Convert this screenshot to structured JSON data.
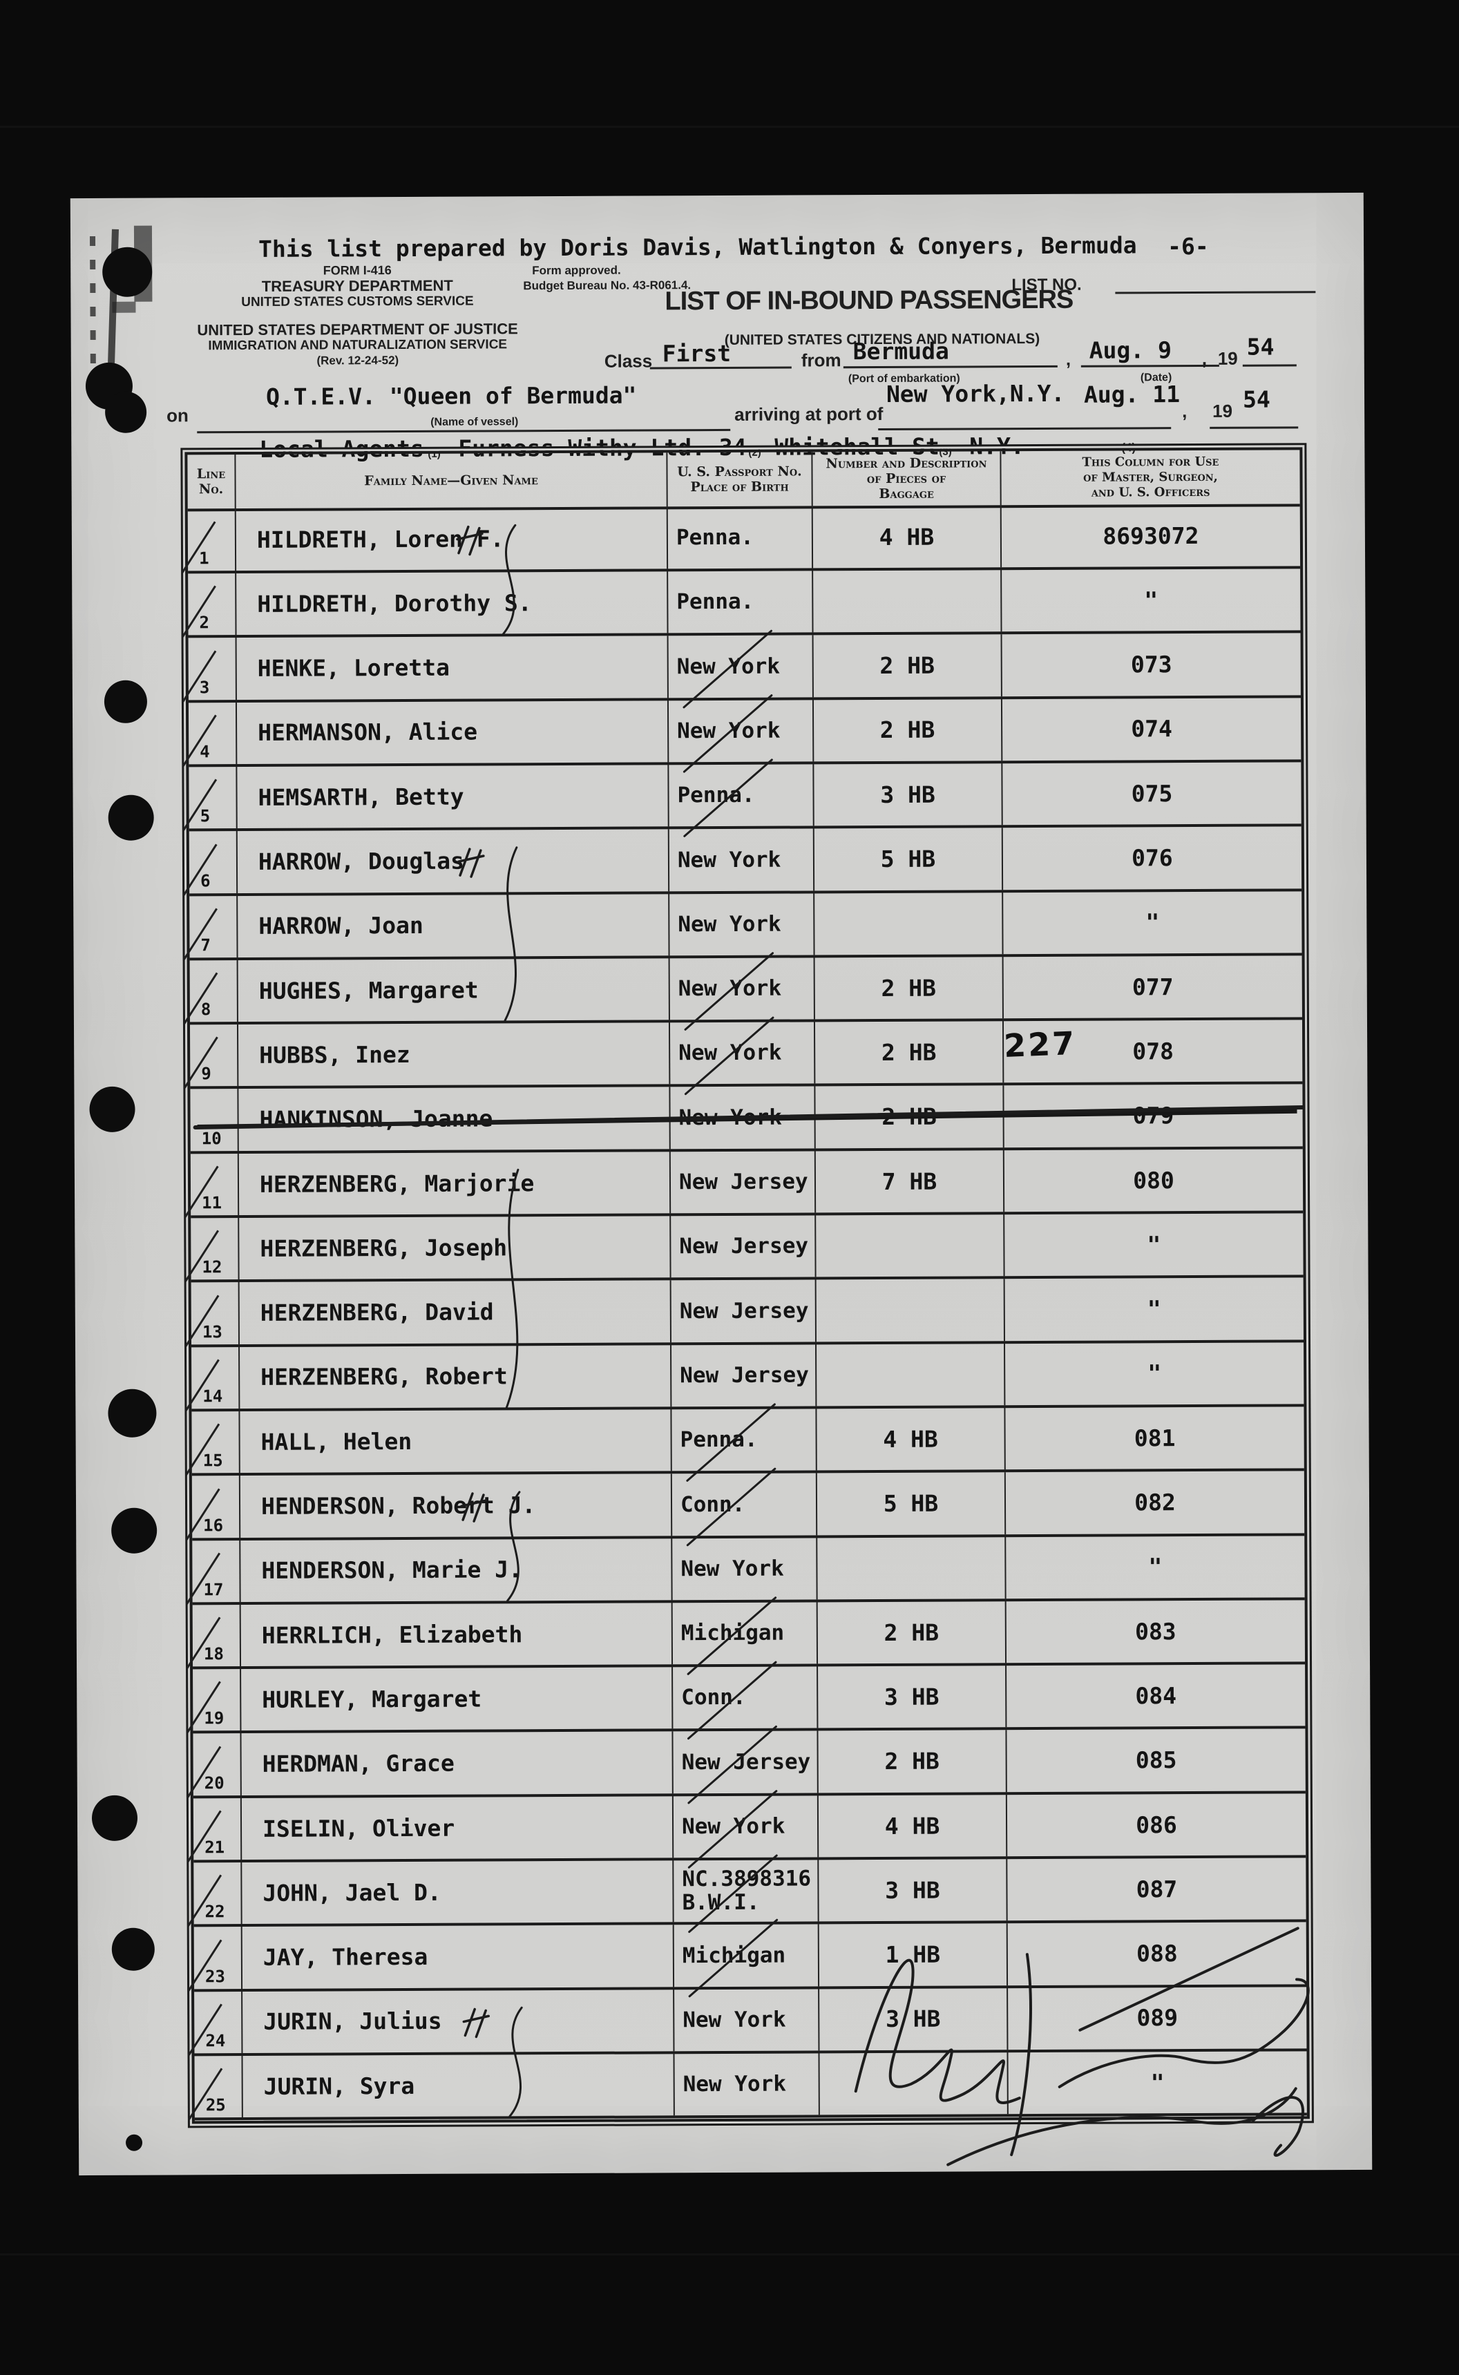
{
  "doc": {
    "prepared_line": "This list prepared by Doris Davis, Watlington & Conyers, Bermuda",
    "page_number": "-6-",
    "form_approved": "Form approved.",
    "budget_bureau": "Budget Bureau No. 43-R061.4.",
    "form_number": "FORM I-416",
    "treasury": "TREASURY DEPARTMENT",
    "customs": "UNITED STATES CUSTOMS SERVICE",
    "justice": "UNITED STATES DEPARTMENT OF JUSTICE",
    "ins": "IMMIGRATION AND NATURALIZATION SERVICE",
    "revision": "(Rev. 12-24-52)",
    "list_no_label": "LIST NO.",
    "title": "LIST OF IN-BOUND PASSENGERS",
    "subtitle": "(UNITED STATES CITIZENS AND NATIONALS)",
    "comma": ","
  },
  "voyage": {
    "class_label": "Class",
    "class_value": "First",
    "from_label": "from",
    "from_value": "Bermuda",
    "port_caption": "(Port of embarkation)",
    "date_caption": "(Date)",
    "embark_date": "Aug. 9",
    "year_printed": "19",
    "embark_year": "54",
    "on_label": "on",
    "vessel_name": "Q.T.E.V. \"Queen of Bermuda\"",
    "vessel_caption": "(Name of vessel)",
    "arriving_label": "arriving at port of",
    "arrival_port": "New York,N.Y.",
    "arrival_date": "Aug. 11",
    "arrival_year": "54",
    "agents_label": "Local Agents",
    "footnote1": "(1)",
    "agents_firm": "Furness Withy Ltd. 34",
    "footnote2": "(2)",
    "agents_street": "Whitehall St",
    "footnote3": "(3)",
    "agents_city": "N.Y.",
    "footnote4": "(4)"
  },
  "table": {
    "headers": {
      "line": "Line\nNo.",
      "name": "Family Name—Given Name",
      "passport": "U. S. Passport No.\nPlace of Birth",
      "baggage": "Number and Description\nof Pieces of\nBaggage",
      "officers": "This Column for Use\nof Master, Surgeon,\nand U. S. Officers"
    },
    "rows": [
      {
        "line": "1",
        "name": "HILDRETH, Loren F.",
        "birth": "Penna.",
        "baggage": "4 HB",
        "officer": "8693072",
        "checked": true
      },
      {
        "line": "2",
        "name": "HILDRETH, Dorothy S.",
        "birth": "Penna.",
        "baggage": "",
        "officer": "\"",
        "checked": true
      },
      {
        "line": "3",
        "name": "HENKE, Loretta",
        "birth": "New York",
        "baggage": "2 HB",
        "officer": "073",
        "checked": true
      },
      {
        "line": "4",
        "name": "HERMANSON, Alice",
        "birth": "New York",
        "baggage": "2 HB",
        "officer": "074",
        "checked": true
      },
      {
        "line": "5",
        "name": "HEMSARTH, Betty",
        "birth": "Penna.",
        "baggage": "3 HB",
        "officer": "075",
        "checked": true
      },
      {
        "line": "6",
        "name": "HARROW, Douglas",
        "birth": "New York",
        "baggage": "5 HB",
        "officer": "076",
        "checked": true
      },
      {
        "line": "7",
        "name": "HARROW, Joan",
        "birth": "New York",
        "baggage": "",
        "officer": "\"",
        "checked": true
      },
      {
        "line": "8",
        "name": "HUGHES, Margaret",
        "birth": "New York",
        "baggage": "2 HB",
        "officer": "077",
        "checked": true
      },
      {
        "line": "9",
        "name": "HUBBS, Inez",
        "birth": "New York",
        "baggage": "2 HB",
        "officer": "078",
        "checked": true
      },
      {
        "line": "10",
        "name": "HANKINSON, Joanne",
        "birth": "New York",
        "baggage": "2 HB",
        "officer": "079",
        "checked": false,
        "struck": true
      },
      {
        "line": "11",
        "name": "HERZENBERG, Marjorie",
        "birth": "New Jersey",
        "baggage": "7 HB",
        "officer": "080",
        "checked": true
      },
      {
        "line": "12",
        "name": "HERZENBERG, Joseph",
        "birth": "New Jersey",
        "baggage": "",
        "officer": "\"",
        "checked": true
      },
      {
        "line": "13",
        "name": "HERZENBERG, David",
        "birth": "New Jersey",
        "baggage": "",
        "officer": "\"",
        "checked": true
      },
      {
        "line": "14",
        "name": "HERZENBERG, Robert",
        "birth": "New Jersey",
        "baggage": "",
        "officer": "\"",
        "checked": true
      },
      {
        "line": "15",
        "name": "HALL, Helen",
        "birth": "Penna.",
        "baggage": "4 HB",
        "officer": "081",
        "checked": true
      },
      {
        "line": "16",
        "name": "HENDERSON, Robert J.",
        "birth": "Conn.",
        "baggage": "5 HB",
        "officer": "082",
        "checked": true
      },
      {
        "line": "17",
        "name": "HENDERSON, Marie J.",
        "birth": "New York",
        "baggage": "",
        "officer": "\"",
        "checked": true
      },
      {
        "line": "18",
        "name": "HERRLICH, Elizabeth",
        "birth": "Michigan",
        "baggage": "2 HB",
        "officer": "083",
        "checked": true
      },
      {
        "line": "19",
        "name": "HURLEY, Margaret",
        "birth": "Conn.",
        "baggage": "3 HB",
        "officer": "084",
        "checked": true
      },
      {
        "line": "20",
        "name": "HERDMAN, Grace",
        "birth": "New Jersey",
        "baggage": "2 HB",
        "officer": "085",
        "checked": true
      },
      {
        "line": "21",
        "name": "ISELIN, Oliver",
        "birth": "New York",
        "baggage": "4 HB",
        "officer": "086",
        "checked": true
      },
      {
        "line": "22",
        "name": "JOHN, Jael D.",
        "birth": "NC.3898316\nB.W.I.",
        "baggage": "3 HB",
        "officer": "087",
        "checked": true
      },
      {
        "line": "23",
        "name": "JAY, Theresa",
        "birth": "Michigan",
        "baggage": "1 HB",
        "officer": "088",
        "checked": true
      },
      {
        "line": "24",
        "name": "JURIN, Julius",
        "birth": "New York",
        "baggage": "3 HB",
        "officer": "089",
        "checked": true
      },
      {
        "line": "25",
        "name": "JURIN, Syra",
        "birth": "New York",
        "baggage": "",
        "officer": "\"",
        "checked": true
      }
    ]
  },
  "annotations": {
    "stamp_number": "227",
    "note": "handwritten check marks, family braces, strike-through on line 10, inspector signature lower right"
  }
}
